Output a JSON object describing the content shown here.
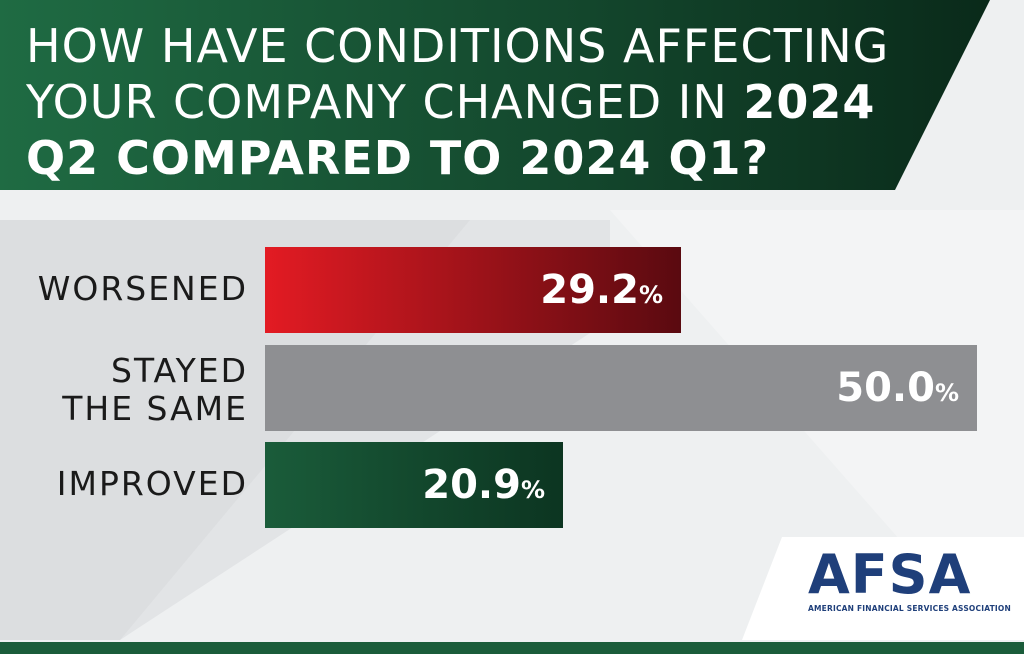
{
  "title": {
    "part1": "HOW HAVE CONDITIONS AFFECTING YOUR COMPANY CHANGED IN ",
    "part2": "2024 Q2 COMPARED TO 2024 Q1?"
  },
  "chart_data": {
    "type": "bar",
    "orientation": "horizontal",
    "title": "HOW HAVE CONDITIONS AFFECTING YOUR COMPANY CHANGED IN 2024 Q2 COMPARED TO 2024 Q1?",
    "categories": [
      "WORSENED",
      "STAYED THE SAME",
      "IMPROVED"
    ],
    "category_lines": [
      [
        "WORSENED"
      ],
      [
        "STAYED",
        "THE SAME"
      ],
      [
        "IMPROVED"
      ]
    ],
    "values": [
      29.2,
      50.0,
      20.9
    ],
    "value_labels": [
      "29.2",
      "50.0",
      "20.9"
    ],
    "unit": "%",
    "colors": [
      "#e31b23",
      "#8e8f92",
      "#1a5c3a"
    ],
    "xlim": [
      0,
      50
    ],
    "grid": false,
    "legend": "none"
  },
  "logo": {
    "text": "AFSA",
    "subtitle": "AMERICAN FINANCIAL SERVICES ASSOCIATION",
    "colors": {
      "primary": "#1f3f7a",
      "accent": "#1a5c3a"
    }
  },
  "colors": {
    "banner_dark": "#0b2e1d",
    "banner_light": "#1f6b43",
    "background": "#eef0f1"
  }
}
